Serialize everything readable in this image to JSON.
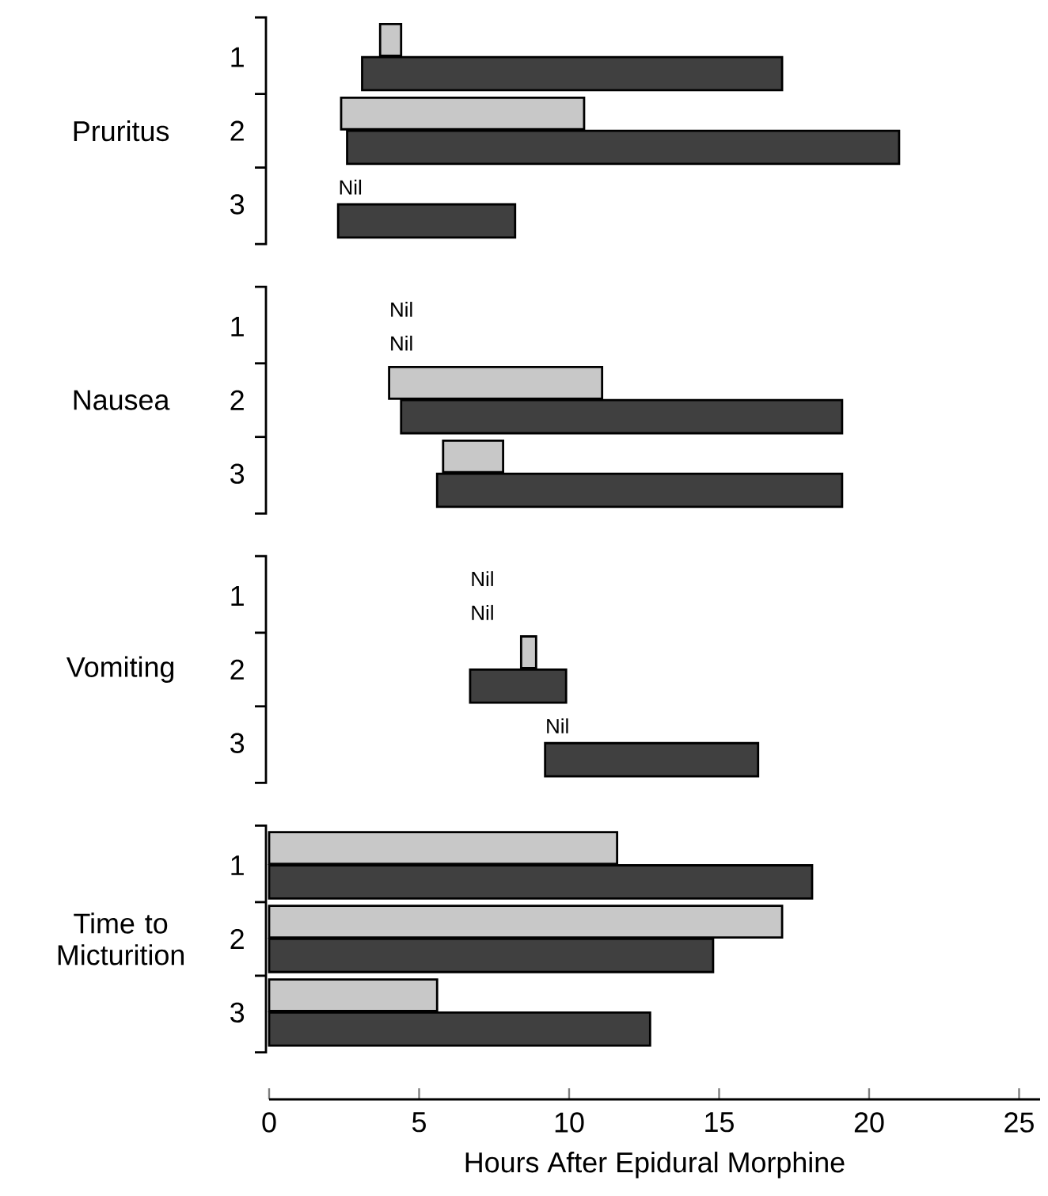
{
  "chart_data": {
    "type": "bar",
    "orientation": "horizontal",
    "xlabel": "Hours After Epidural Morphine",
    "categories": [
      "1",
      "2",
      "3",
      "1",
      "2",
      "3",
      "1",
      "2",
      "3",
      "1",
      "2",
      "3"
    ],
    "annotations": [
      "Pruritus",
      "Nausea",
      "Vomiting",
      "Time to Micturition"
    ],
    "xlim": [
      0,
      25.7
    ],
    "xticks": [
      0,
      5,
      10,
      15,
      20,
      25
    ],
    "series": [
      {
        "color": "#c8c8c8",
        "base": [
          3.7,
          2.4,
          null,
          null,
          4.0,
          5.8,
          null,
          8.4,
          null,
          0,
          0,
          0
        ],
        "values": [
          0.7,
          8.1,
          null,
          null,
          7.1,
          2.0,
          null,
          0.5,
          null,
          11.6,
          17.1,
          5.6
        ],
        "value_labels": [
          null,
          null,
          "Nil",
          "Nil",
          null,
          null,
          "Nil",
          null,
          "Nil",
          null,
          null,
          null
        ]
      },
      {
        "color": "#404040",
        "base": [
          3.1,
          2.6,
          2.3,
          null,
          4.4,
          5.6,
          null,
          6.7,
          9.2,
          0,
          0,
          0
        ],
        "values": [
          14.0,
          18.4,
          5.9,
          null,
          14.7,
          13.5,
          null,
          3.2,
          7.1,
          18.1,
          14.8,
          12.7
        ],
        "value_labels": [
          null,
          null,
          null,
          "Nil",
          null,
          null,
          "Nil",
          null,
          null,
          null,
          null,
          null
        ]
      }
    ]
  }
}
